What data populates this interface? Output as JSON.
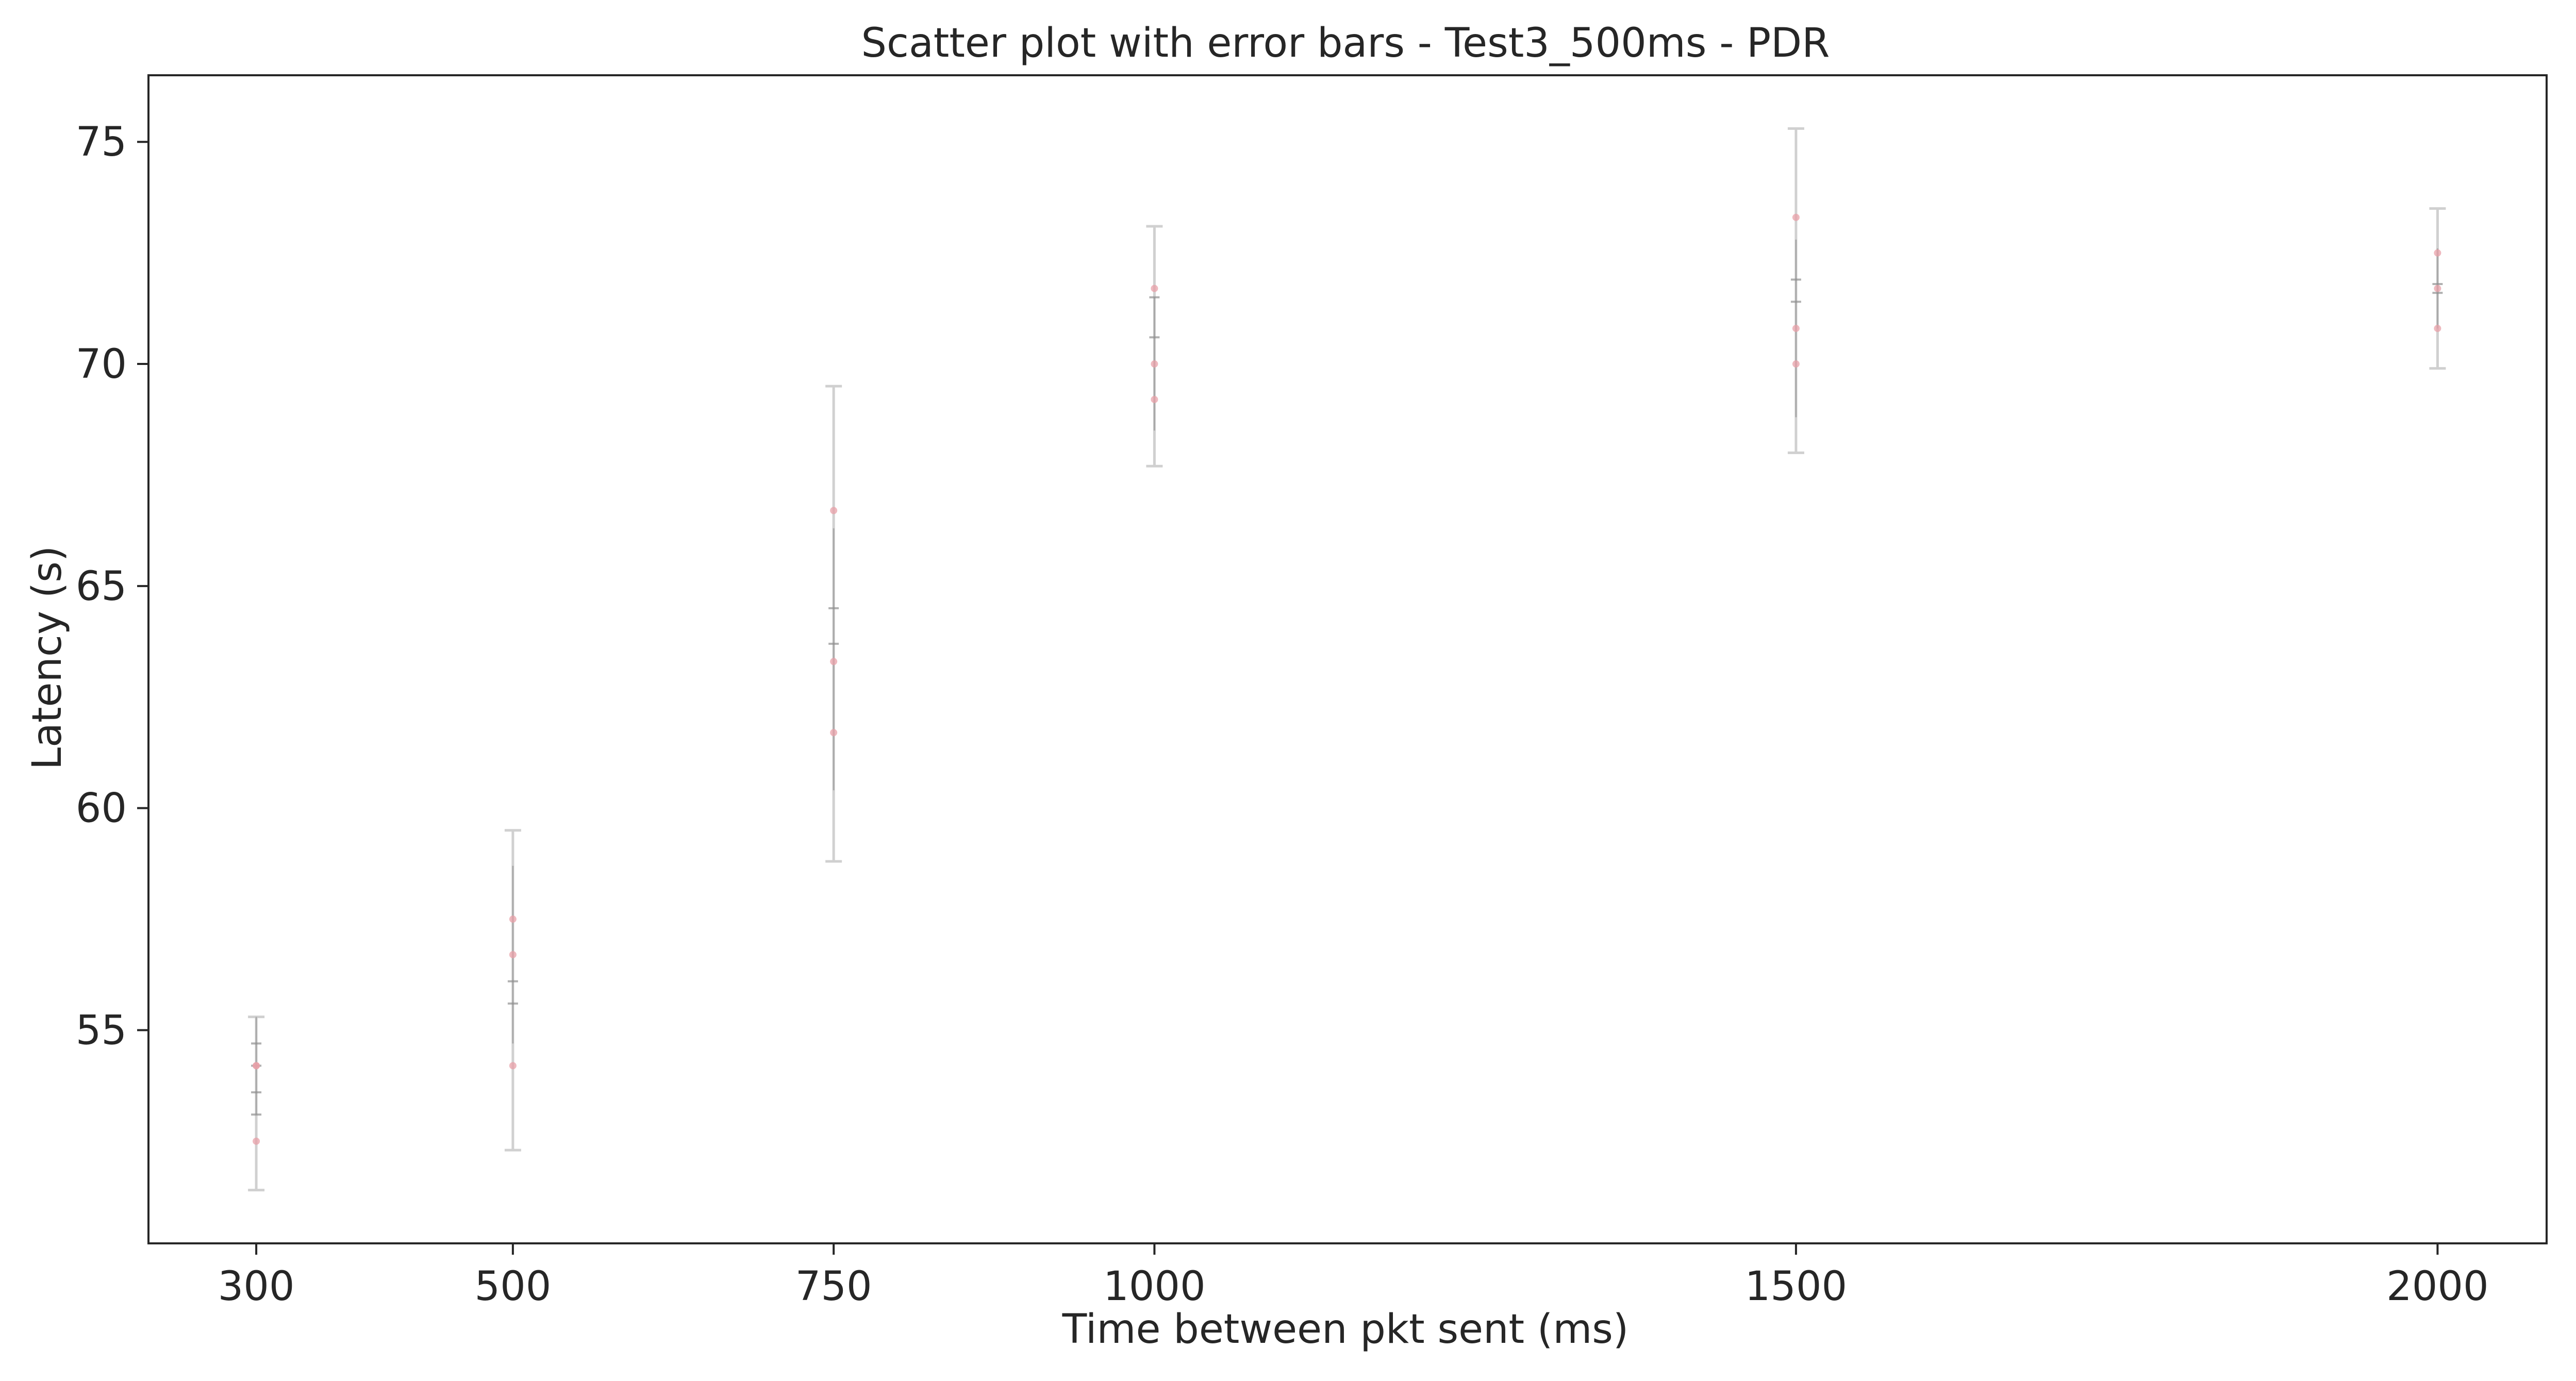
{
  "chart_data": {
    "type": "scatter",
    "title": "Scatter plot with error bars - Test3_500ms - PDR",
    "xlabel": "Time between pkt sent (ms)",
    "ylabel": "Latency (s)",
    "x_categories": [
      "300",
      "500",
      "750",
      "1000",
      "1500",
      "2000"
    ],
    "x": [
      300,
      500,
      750,
      1000,
      1500,
      2000
    ],
    "xlim": [
      216,
      2085
    ],
    "ylim": [
      50.2,
      76.5
    ],
    "yticks": [
      55,
      60,
      65,
      70,
      75
    ],
    "grid": false,
    "colors": {
      "points": "#e8a0a8",
      "outer_errorbar": "#d0d0d0",
      "inner_errorbar": "#909090",
      "axes": "#262626"
    },
    "points": [
      {
        "x": 300,
        "y": [
          54.2,
          54.2,
          52.5
        ]
      },
      {
        "x": 500,
        "y": [
          57.5,
          56.7,
          54.2
        ]
      },
      {
        "x": 750,
        "y": [
          66.7,
          63.3,
          61.7
        ]
      },
      {
        "x": 1000,
        "y": [
          71.7,
          70.0,
          69.2
        ]
      },
      {
        "x": 1500,
        "y": [
          73.3,
          70.8,
          70.0
        ]
      },
      {
        "x": 2000,
        "y": [
          72.5,
          71.7,
          70.8
        ]
      }
    ],
    "outer_errorbars": [
      {
        "x": 300,
        "low": 51.4,
        "high": 55.3
      },
      {
        "x": 500,
        "low": 52.3,
        "high": 59.5
      },
      {
        "x": 750,
        "low": 58.8,
        "high": 69.5
      },
      {
        "x": 1000,
        "low": 67.7,
        "high": 73.1
      },
      {
        "x": 1500,
        "low": 68.0,
        "high": 75.3
      },
      {
        "x": 2000,
        "low": 69.9,
        "high": 73.5
      }
    ],
    "inner_errorbars": [
      {
        "x": 300,
        "low": 53.1,
        "high": 55.3
      },
      {
        "x": 500,
        "low": 54.7,
        "high": 58.7
      },
      {
        "x": 750,
        "low": 60.4,
        "high": 66.3
      },
      {
        "x": 1000,
        "low": 68.5,
        "high": 71.5
      },
      {
        "x": 1500,
        "low": 68.8,
        "high": 72.8
      },
      {
        "x": 2000,
        "low": 70.8,
        "high": 72.6
      }
    ],
    "inner_caps": [
      {
        "x": 300,
        "y": [
          53.1,
          53.6,
          54.2,
          54.7
        ]
      },
      {
        "x": 500,
        "y": [
          55.6,
          56.1
        ]
      },
      {
        "x": 750,
        "y": [
          63.7,
          64.5
        ]
      },
      {
        "x": 1000,
        "y": [
          70.6,
          71.5
        ]
      },
      {
        "x": 1500,
        "y": [
          71.4,
          71.9
        ]
      },
      {
        "x": 2000,
        "y": [
          71.6,
          71.8
        ]
      }
    ]
  }
}
